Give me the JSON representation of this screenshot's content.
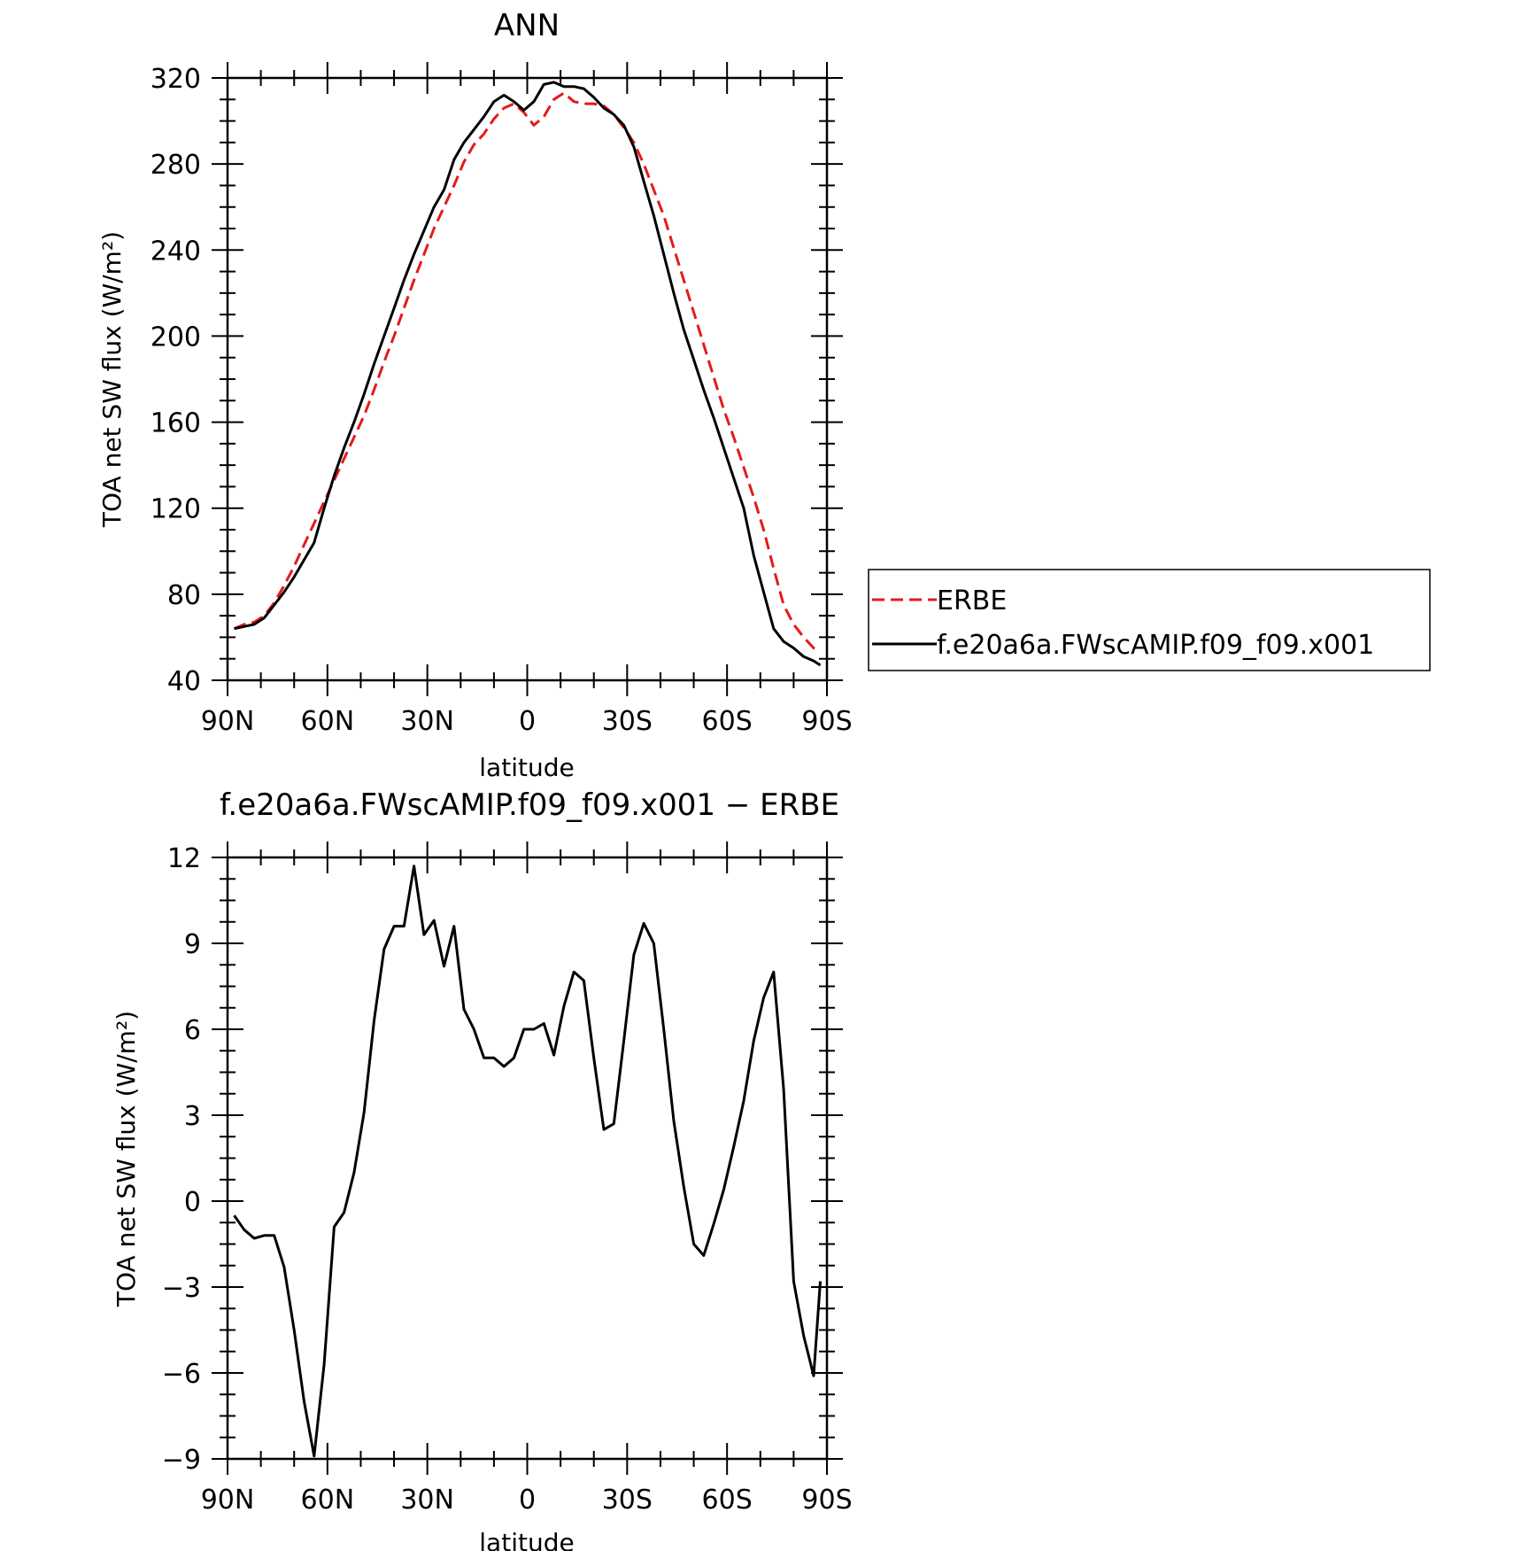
{
  "chart_data": [
    {
      "type": "line",
      "title": "ANN",
      "xlabel": "latitude",
      "ylabel": "TOA net SW flux (W/m²)",
      "xlim": [
        90,
        -90
      ],
      "ylim": [
        40,
        320
      ],
      "xticks": [
        90,
        60,
        30,
        0,
        -30,
        -60,
        -90
      ],
      "xtick_labels": [
        "90N",
        "60N",
        "30N",
        "0",
        "30S",
        "60S",
        "90S"
      ],
      "yticks": [
        40,
        80,
        120,
        160,
        200,
        240,
        280,
        320
      ],
      "ytick_labels": [
        "40",
        "80",
        "120",
        "160",
        "200",
        "240",
        "280",
        "320"
      ],
      "legend_position": "right",
      "series": [
        {
          "name": "ERBE",
          "color": "#e41a1c",
          "style": "dashed",
          "x": [
            88,
            85,
            82,
            79,
            76,
            73,
            70,
            67,
            64,
            61,
            58,
            55,
            52,
            49,
            46,
            43,
            40,
            37,
            34,
            31,
            28,
            25,
            22,
            19,
            16,
            13,
            10,
            7,
            4,
            1,
            -2,
            -5,
            -8,
            -11,
            -14,
            -17,
            -20,
            -23,
            -26,
            -29,
            -32,
            -35,
            -38,
            -41,
            -44,
            -47,
            -50,
            -53,
            -56,
            -59,
            -62,
            -65,
            -68,
            -71,
            -74,
            -77,
            -80,
            -83,
            -86,
            -88
          ],
          "values": [
            64,
            66,
            67,
            70,
            76,
            84,
            93,
            103,
            113,
            123,
            133,
            143,
            153,
            163,
            175,
            188,
            200,
            213,
            226,
            238,
            250,
            260,
            270,
            281,
            289,
            294,
            301,
            306,
            308,
            304,
            298,
            302,
            310,
            313,
            309,
            308,
            308,
            307,
            303,
            297,
            290,
            280,
            268,
            256,
            241,
            226,
            211,
            196,
            181,
            166,
            153,
            139,
            125,
            110,
            92,
            75,
            66,
            60,
            55,
            54
          ],
          "labels_side": "legend"
        },
        {
          "name": "f.e20a6a.FWscAMIP.f09_f09.x001",
          "color": "#000000",
          "style": "solid",
          "x": [
            88,
            85,
            82,
            79,
            76,
            73,
            70,
            67,
            64,
            61,
            58,
            55,
            52,
            49,
            46,
            43,
            40,
            37,
            34,
            31,
            28,
            25,
            22,
            19,
            16,
            13,
            10,
            7,
            4,
            1,
            -2,
            -5,
            -8,
            -11,
            -14,
            -17,
            -20,
            -23,
            -26,
            -29,
            -32,
            -35,
            -38,
            -41,
            -44,
            -47,
            -50,
            -53,
            -56,
            -59,
            -62,
            -65,
            -68,
            -71,
            -74,
            -77,
            -80,
            -83,
            -86,
            -88
          ],
          "values": [
            64,
            65,
            66,
            69,
            75,
            81,
            88,
            96,
            104,
            120,
            135,
            148,
            160,
            173,
            187,
            200,
            213,
            226,
            238,
            249,
            260,
            268,
            282,
            290,
            296,
            302,
            309,
            312,
            309,
            305,
            309,
            317,
            318,
            316,
            316,
            315,
            311,
            306,
            303,
            298,
            288,
            272,
            256,
            238,
            220,
            203,
            189,
            175,
            162,
            148,
            134,
            120,
            98,
            81,
            64,
            58,
            55,
            51,
            49,
            47
          ]
        }
      ]
    },
    {
      "type": "line",
      "title": "f.e20a6a.FWscAMIP.f09_f09.x001 − ERBE",
      "xlabel": "latitude",
      "ylabel": "TOA net SW flux (W/m²)",
      "xlim": [
        90,
        -90
      ],
      "ylim": [
        -9,
        12
      ],
      "xticks": [
        90,
        60,
        30,
        0,
        -30,
        -60,
        -90
      ],
      "xtick_labels": [
        "90N",
        "60N",
        "30N",
        "0",
        "30S",
        "60S",
        "90S"
      ],
      "yticks": [
        -9,
        -6,
        -3,
        0,
        3,
        6,
        9,
        12
      ],
      "ytick_labels": [
        "−9",
        "−6",
        "−3",
        "0",
        "3",
        "6",
        "9",
        "12"
      ],
      "series": [
        {
          "name": "",
          "color": "#000000",
          "style": "solid",
          "x": [
            88,
            85,
            82,
            79,
            76,
            73,
            70,
            67,
            64,
            61,
            58,
            55,
            52,
            49,
            46,
            43,
            40,
            37,
            34,
            31,
            28,
            25,
            22,
            19,
            16,
            13,
            10,
            7,
            4,
            1,
            -2,
            -5,
            -8,
            -11,
            -14,
            -17,
            -20,
            -23,
            -26,
            -29,
            -32,
            -35,
            -38,
            -41,
            -44,
            -47,
            -50,
            -53,
            -56,
            -59,
            -62,
            -65,
            -68,
            -71,
            -74,
            -77,
            -80,
            -83,
            -86,
            -88
          ],
          "values": [
            -0.5,
            -1.0,
            -1.3,
            -1.2,
            -1.2,
            -2.3,
            -4.5,
            -7.0,
            -8.9,
            -5.7,
            -0.9,
            -0.4,
            1.0,
            3.1,
            6.3,
            8.8,
            9.6,
            9.6,
            11.7,
            9.3,
            9.8,
            8.2,
            9.6,
            6.7,
            6.0,
            5.0,
            5.0,
            4.7,
            5.0,
            6.0,
            6.0,
            6.2,
            5.1,
            6.8,
            8.0,
            7.7,
            5.0,
            2.5,
            2.7,
            5.6,
            8.6,
            9.7,
            9.0,
            6.0,
            2.8,
            0.5,
            -1.5,
            -1.9,
            -0.8,
            0.4,
            1.9,
            3.5,
            5.6,
            7.1,
            8.0,
            3.9,
            -2.8,
            -4.7,
            -6.1,
            -2.8
          ]
        }
      ]
    }
  ]
}
